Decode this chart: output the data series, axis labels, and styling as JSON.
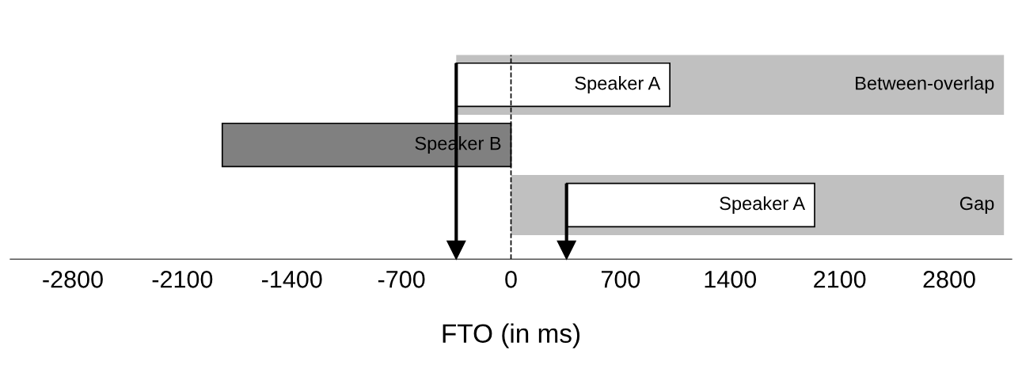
{
  "chart_data": {
    "type": "bar",
    "orientation": "horizontal",
    "categories": [
      null,
      null,
      null
    ],
    "series": [
      {
        "color": "#c0c0c0",
        "base": [
          -350,
          null,
          0
        ],
        "values": [
          3500,
          null,
          3150
        ],
        "value_labels": [
          "Between-overlap",
          null,
          "Gap"
        ]
      },
      {
        "colors": [
          "#ffffff",
          "#808080",
          "#ffffff"
        ],
        "base": [
          -350,
          -1845,
          355
        ],
        "values": [
          1365,
          1845,
          1585
        ],
        "value_labels": [
          "Speaker A",
          "Speaker B",
          "Speaker A"
        ]
      }
    ],
    "xlim": [
      -3200,
      3200
    ],
    "xticks": [
      -2800,
      -2100,
      -1400,
      -700,
      0,
      700,
      1400,
      2100,
      2800
    ],
    "xlabel": "FTO (in ms)",
    "tick_labels": "x",
    "grid": false,
    "legend": false,
    "ref_lines": [
      {
        "axis": "x",
        "value": 0,
        "label": null,
        "line_style": "dashed",
        "color": "#000000"
      },
      {
        "axis": "x",
        "value": -350,
        "label": null,
        "line_style": "solid",
        "color": "#000000"
      },
      {
        "axis": "x",
        "value": 355,
        "label": null,
        "line_style": "solid",
        "color": "#000000"
      }
    ]
  }
}
